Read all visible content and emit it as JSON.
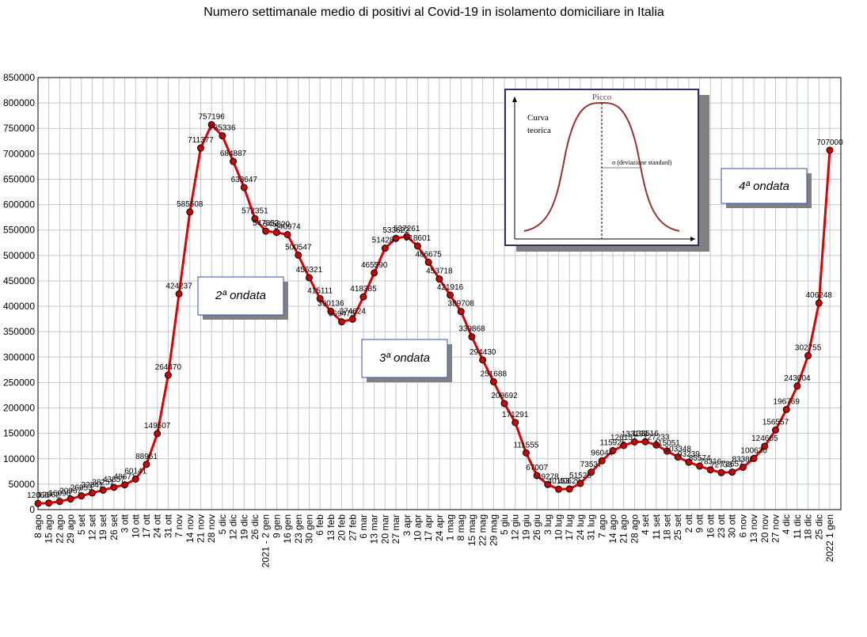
{
  "chart_data": {
    "type": "line",
    "title": "Numero settimanale medio di positivi al Covid-19  in isolamento domiciliare in Italia",
    "categories": [
      "8 ago",
      "15 ago",
      "22 ago",
      "29 ago",
      "5 set",
      "12 set",
      "19 set",
      "26 set",
      "3 ott",
      "10 ott",
      "17 ott",
      "24 ott",
      "31 ott",
      "7 nov",
      "14 nov",
      "21 nov",
      "28 nov",
      "5 dic",
      "12 dic",
      "19 dic",
      "26 dic",
      "2021 - 2 gen",
      "9 gen",
      "16 gen",
      "23 gen",
      "30 gen",
      "6 feb",
      "13 feb",
      "20 feb",
      "27 feb",
      "6 mar",
      "13 mar",
      "20 mar",
      "27 mar",
      "3 apr",
      "10 apr",
      "17 apr",
      "24 apr",
      "1 mag",
      "8 mag",
      "15 mag",
      "22 mag",
      "29 mag",
      "5 giu",
      "12 giu",
      "19 giu",
      "26 giu",
      "3 lug",
      "10 lug",
      "17 lug",
      "24 lug",
      "31 lug",
      "7 ago",
      "14 ago",
      "21 ago",
      "28 ago",
      "4 set",
      "11 set",
      "18 set",
      "25 set",
      "2 ott",
      "9 ott",
      "16 ott",
      "23 ott",
      "30 ott",
      "6 nov",
      "13 nov",
      "20 nov",
      "27 nov",
      "4 dic",
      "11 dic",
      "18 dic",
      "25 dic",
      "2022 1 gen"
    ],
    "series": [
      {
        "color": "#e00000",
        "marker_color": "#cc0000",
        "values": [
          12066,
          12862,
          16098,
          20967,
          26953,
          32841,
          38251,
          43857,
          48671,
          60141,
          88961,
          149507,
          264470,
          424237,
          585508,
          711377,
          757196,
          735336,
          684887,
          633647,
          572351,
          547853,
          545320,
          540974,
          500547,
          456321,
          415111,
          390136,
          369475,
          374624,
          418385,
          465590,
          514287,
          533622,
          537261,
          518601,
          486675,
          453718,
          421916,
          389708,
          339868,
          294430,
          251688,
          208692,
          171291,
          111555,
          67007,
          49278,
          40153,
          40629,
          51526,
          73537,
          96044,
          115925,
          126157,
          133133,
          133516,
          127233,
          115051,
          103348,
          93239,
          85574,
          78316,
          72733,
          73657,
          83380,
          100630,
          124605,
          156557,
          196769,
          243004,
          302755,
          406248,
          707000
        ]
      }
    ],
    "ylim": [
      0,
      850000
    ],
    "yticks": [
      0,
      50000,
      100000,
      150000,
      200000,
      250000,
      300000,
      350000,
      400000,
      450000,
      500000,
      550000,
      600000,
      650000,
      700000,
      750000,
      800000,
      850000
    ],
    "grid": true,
    "annotations": [
      "2ª ondata",
      "3ª ondata",
      "4ª ondata"
    ],
    "inset": {
      "peak": "Picco",
      "curve_line1": "Curva",
      "curve_line2": "teorica",
      "sigma": "σ  (deviazione standard)"
    }
  }
}
